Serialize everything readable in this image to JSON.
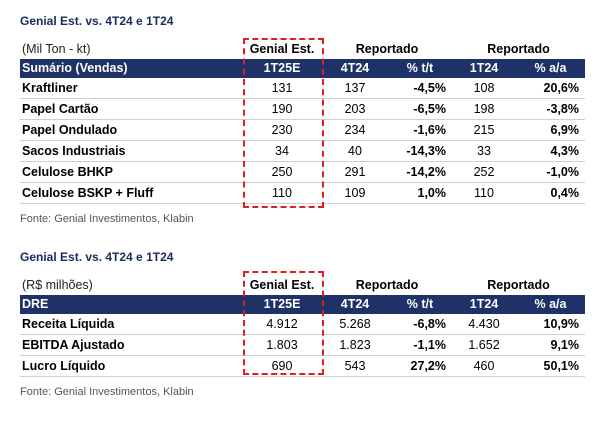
{
  "table1": {
    "title": "Genial Est. vs. 4T24 e 1T24",
    "unit": "(Mil Ton - kt)",
    "group_estimate": "Genial Est.",
    "group_reported_1": "Reportado",
    "group_reported_2": "Reportado",
    "columns": [
      "Sumário (Vendas)",
      "1T25E",
      "4T24",
      "% t/t",
      "1T24",
      "% a/a"
    ],
    "rows": [
      [
        "Kraftliner",
        "131",
        "137",
        "-4,5%",
        "108",
        "20,6%"
      ],
      [
        "Papel Cartão",
        "190",
        "203",
        "-6,5%",
        "198",
        "-3,8%"
      ],
      [
        "Papel Ondulado",
        "230",
        "234",
        "-1,6%",
        "215",
        "6,9%"
      ],
      [
        "Sacos Industriais",
        "34",
        "40",
        "-14,3%",
        "33",
        "4,3%"
      ],
      [
        "Celulose BHKP",
        "250",
        "291",
        "-14,2%",
        "252",
        "-1,0%"
      ],
      [
        "Celulose BSKP + Fluff",
        "110",
        "109",
        "1,0%",
        "110",
        "0,4%"
      ]
    ],
    "source": "Fonte: Genial Investimentos, Klabin"
  },
  "table2": {
    "title": "Genial Est. vs. 4T24 e 1T24",
    "unit": "(R$ milhões)",
    "group_estimate": "Genial Est.",
    "group_reported_1": "Reportado",
    "group_reported_2": "Reportado",
    "columns": [
      "DRE",
      "1T25E",
      "4T24",
      "% t/t",
      "1T24",
      "% a/a"
    ],
    "rows": [
      [
        "Receita Líquida",
        "4.912",
        "5.268",
        "-6,8%",
        "4.430",
        "10,9%"
      ],
      [
        "EBITDA Ajustado",
        "1.803",
        "1.823",
        "-1,1%",
        "1.652",
        "9,1%"
      ],
      [
        "Lucro Líquido",
        "690",
        "543",
        "27,2%",
        "460",
        "50,1%"
      ]
    ],
    "source": "Fonte: Genial Investimentos, Klabin"
  },
  "colors": {
    "header_bg": "#1f3268",
    "title_text": "#1a2a5c",
    "highlight_dash": "#e02020"
  }
}
